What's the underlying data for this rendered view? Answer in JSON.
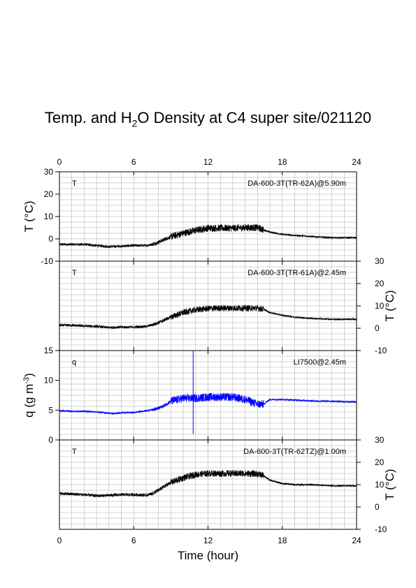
{
  "page": {
    "title_pre": "Temp. and H",
    "title_sub": "2",
    "title_post": "O Density at C4 super site/021120"
  },
  "chart_data": {
    "type": "line",
    "x_label": "Time (hour)",
    "x_range": [
      0,
      24
    ],
    "x_ticks": [
      "0",
      "6",
      "12",
      "18",
      "24"
    ],
    "grid": true,
    "panels": [
      {
        "id": "p1",
        "tag": "T",
        "tag_color": "#000000",
        "series_name": "DA-600-3T(TR-62A)@5.90m",
        "color": "#000000",
        "y_range": [
          -10,
          30
        ],
        "y_ticks": [
          "-10",
          "0",
          "10",
          "20",
          "30"
        ],
        "y_axis_side": "left",
        "y_label": "T (°C)",
        "noise": [
          0.6,
          0.9,
          1.6,
          0.4
        ],
        "x": [
          0,
          1,
          2,
          3,
          4,
          5,
          6,
          7,
          7.5,
          8,
          9,
          10,
          11,
          12,
          13,
          14,
          15,
          16,
          16.5,
          17,
          18,
          19,
          20,
          21,
          22,
          23,
          24
        ],
        "y": [
          -2.5,
          -2.5,
          -2.5,
          -3,
          -3.5,
          -3.3,
          -3,
          -3,
          -2.5,
          -1.5,
          1,
          2.5,
          3.8,
          4.8,
          4.8,
          4.8,
          5,
          5,
          4,
          3,
          2,
          1.5,
          1.2,
          0.8,
          0.5,
          0.5,
          0.5
        ]
      },
      {
        "id": "p2",
        "tag": "T",
        "tag_color": "#000000",
        "series_name": "DA-600-3T(TR-61A)@2.45m",
        "color": "#000000",
        "y_range": [
          -10,
          30
        ],
        "y_ticks": [
          "-10",
          "0",
          "10",
          "20",
          "30"
        ],
        "y_axis_side": "right",
        "y_label": "T (°C)",
        "noise": [
          0.6,
          0.8,
          1.4,
          0.4
        ],
        "x": [
          0,
          1,
          2,
          3,
          4,
          5,
          6,
          7,
          7.5,
          8,
          9,
          10,
          11,
          12,
          13,
          14,
          15,
          16,
          16.5,
          17,
          18,
          19,
          20,
          21,
          22,
          23,
          24
        ],
        "y": [
          1.3,
          1.3,
          1,
          0.8,
          0.3,
          0.5,
          0.5,
          0.8,
          1.5,
          2.5,
          5,
          7,
          8.2,
          8.8,
          9,
          9,
          9,
          9,
          8.5,
          7,
          5.8,
          5,
          4.5,
          4.2,
          4,
          4,
          4
        ]
      },
      {
        "id": "p3",
        "tag": "q",
        "tag_color": "#0000ff",
        "series_name": "LI7500@2.45m",
        "color": "#0000ff",
        "y_range": [
          0,
          15
        ],
        "y_ticks": [
          "0",
          "5",
          "10",
          "15"
        ],
        "y_axis_side": "left",
        "y_label_pre": "q (g m",
        "y_label_sup": "-3",
        "y_label_post": ")",
        "noise": [
          0.15,
          0.3,
          0.7,
          0.15
        ],
        "spike_x": 10.8,
        "spike_range": [
          1,
          15
        ],
        "x": [
          0,
          1,
          2,
          3,
          4,
          4.5,
          5,
          6,
          7,
          8,
          8.5,
          9,
          10,
          11,
          12,
          13,
          14,
          15,
          16,
          16.5,
          17,
          18,
          19,
          20,
          21,
          22,
          23,
          24
        ],
        "y": [
          4.9,
          4.8,
          4.8,
          4.7,
          4.5,
          4.4,
          4.6,
          4.6,
          4.9,
          5.3,
          5.8,
          6.5,
          7,
          7,
          7.2,
          7.2,
          7.2,
          6.8,
          6,
          6,
          6.8,
          6.8,
          6.7,
          6.6,
          6.5,
          6.5,
          6.4,
          6.4
        ]
      },
      {
        "id": "p4",
        "tag": "T",
        "tag_color": "#000000",
        "series_name": "DA-600-3T(TR-62TZ)@1.00m",
        "color": "#000000",
        "y_range": [
          -10,
          30
        ],
        "y_ticks": [
          "-10",
          "0",
          "10",
          "20",
          "30"
        ],
        "y_axis_side": "right",
        "y_label": "T (°C)",
        "noise": [
          0.7,
          0.9,
          1.5,
          0.4
        ],
        "x": [
          0,
          1,
          2,
          3,
          4,
          5,
          6,
          7,
          7.5,
          8,
          9,
          10,
          11,
          12,
          13,
          14,
          15,
          16,
          16.5,
          17,
          18,
          19,
          20,
          21,
          22,
          23,
          24
        ],
        "y": [
          6,
          5.8,
          5.5,
          5,
          5.2,
          5.5,
          5.5,
          5.3,
          6,
          7.5,
          11,
          13,
          14.5,
          15,
          15,
          15,
          15,
          14.8,
          14,
          12,
          10.5,
          10,
          10,
          9.8,
          9.5,
          9.5,
          9.5
        ]
      }
    ]
  }
}
